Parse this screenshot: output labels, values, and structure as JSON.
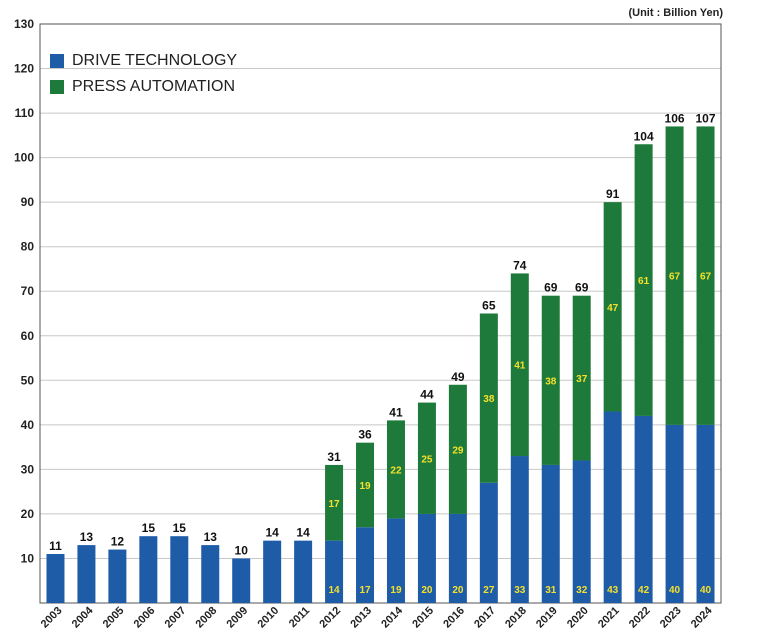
{
  "unit_note": "(Unit : Billion Yen)",
  "colors": {
    "drive": "#1f5ca8",
    "press": "#1e7a3a",
    "inner_label": "#f5e12c",
    "grid": "#c8c8c8"
  },
  "legend": [
    {
      "label": "DRIVE TECHNOLOGY",
      "color": "#1f5ca8"
    },
    {
      "label": "PRESS AUTOMATION",
      "color": "#1e7a3a"
    }
  ],
  "chart_data": {
    "type": "bar",
    "stacked": true,
    "categories": [
      "2003",
      "2004",
      "2005",
      "2006",
      "2007",
      "2008",
      "2009",
      "2010",
      "2011",
      "2012",
      "2013",
      "2014",
      "2015",
      "2016",
      "2017",
      "2018",
      "2019",
      "2020",
      "2021",
      "2022",
      "2023",
      "2024"
    ],
    "series": [
      {
        "name": "DRIVE TECHNOLOGY",
        "values": [
          11,
          13,
          12,
          15,
          15,
          13,
          10,
          14,
          14,
          14,
          17,
          19,
          20,
          20,
          27,
          33,
          31,
          32,
          43,
          42,
          40,
          40
        ]
      },
      {
        "name": "PRESS AUTOMATION",
        "values": [
          0,
          0,
          0,
          0,
          0,
          0,
          0,
          0,
          0,
          17,
          19,
          22,
          25,
          29,
          38,
          41,
          38,
          37,
          47,
          61,
          67,
          67
        ]
      }
    ],
    "series_labels": [
      [
        "",
        "",
        "",
        "",
        "",
        "",
        "",
        "",
        "",
        "14",
        "17",
        "19",
        "20",
        "20",
        "27",
        "33",
        "31",
        "32",
        "43",
        "42",
        "40",
        "40"
      ],
      [
        "",
        "",
        "",
        "",
        "",
        "",
        "",
        "",
        "",
        "17",
        "19",
        "22",
        "25",
        "29",
        "38",
        "41",
        "38",
        "37",
        "47",
        "61",
        "67",
        "67"
      ]
    ],
    "totals": [
      "11",
      "13",
      "12",
      "15",
      "15",
      "13",
      "10",
      "14",
      "14",
      "31",
      "36",
      "41",
      "44",
      "49",
      "65",
      "74",
      "69",
      "69",
      "91",
      "104",
      "106",
      "107"
    ],
    "yticks": [
      "10",
      "20",
      "30",
      "40",
      "50",
      "60",
      "70",
      "80",
      "90",
      "100",
      "110",
      "120",
      "130"
    ],
    "ylim": [
      0,
      130
    ],
    "grid": true,
    "legend_position": "top-left",
    "xlabel": "",
    "ylabel": ""
  }
}
